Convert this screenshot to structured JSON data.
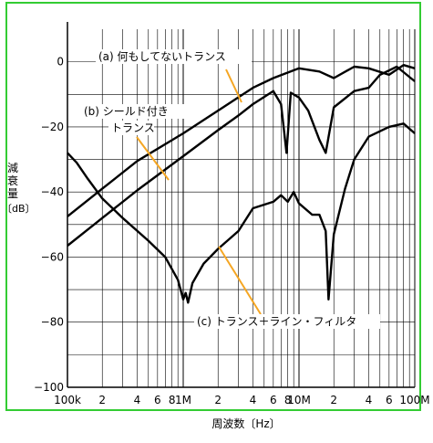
{
  "chart_data": {
    "type": "line",
    "title": "",
    "xlabel": "周波数〔Hz〕",
    "ylabel": "減衰量〔dB〕",
    "xscale": "log",
    "xlim": [
      100000,
      100000000
    ],
    "ylim": [
      -100,
      10
    ],
    "grid": true,
    "legend": "none",
    "x_ticks": [
      {
        "value": 100000,
        "label": "100k"
      },
      {
        "value": 200000,
        "label": "2"
      },
      {
        "value": 400000,
        "label": "4"
      },
      {
        "value": 600000,
        "label": "6"
      },
      {
        "value": 800000,
        "label": "8"
      },
      {
        "value": 1000000,
        "label": "1M"
      },
      {
        "value": 2000000,
        "label": "2"
      },
      {
        "value": 4000000,
        "label": "4"
      },
      {
        "value": 6000000,
        "label": "6"
      },
      {
        "value": 8000000,
        "label": "8"
      },
      {
        "value": 10000000,
        "label": "10M"
      },
      {
        "value": 20000000,
        "label": "2"
      },
      {
        "value": 40000000,
        "label": "4"
      },
      {
        "value": 60000000,
        "label": "6"
      },
      {
        "value": 100000000,
        "label": "100M"
      }
    ],
    "y_ticks": [
      {
        "value": 0,
        "label": "0"
      },
      {
        "value": -20,
        "label": "−20"
      },
      {
        "value": -40,
        "label": "−40"
      },
      {
        "value": -60,
        "label": "−60"
      },
      {
        "value": -80,
        "label": "−80"
      },
      {
        "value": -100,
        "label": "−100"
      }
    ],
    "annotations": [
      {
        "text": "(a)  何もしてないトランス",
        "series": "a"
      },
      {
        "text": "(b)  シールド付き",
        "series": "b"
      },
      {
        "text": "トランス",
        "series": "b"
      },
      {
        "text": "(c)  トランス＋ライン・フィルタ",
        "series": "c"
      }
    ],
    "series": [
      {
        "id": "a",
        "x": [
          100000,
          200000,
          400000,
          1000000,
          2000000,
          4000000,
          6000000,
          10000000,
          15000000,
          20000000,
          30000000,
          40000000,
          60000000,
          80000000,
          100000000
        ],
        "y": [
          -47.5,
          -39,
          -30.5,
          -22,
          -15,
          -8,
          -5,
          -2,
          -3,
          -5,
          -1.5,
          -2,
          -4,
          -1,
          -2
        ]
      },
      {
        "id": "b",
        "x": [
          100000,
          200000,
          400000,
          1000000,
          2000000,
          3000000,
          4000000,
          6000000,
          7000000,
          7800000,
          8500000,
          10000000,
          12000000,
          15000000,
          17000000,
          20000000,
          30000000,
          40000000,
          50000000,
          70000000,
          100000000
        ],
        "y": [
          -56.5,
          -48,
          -39.5,
          -29,
          -21,
          -16.5,
          -13,
          -9,
          -13,
          -28,
          -9.5,
          -11,
          -15,
          -24,
          -28,
          -14,
          -9,
          -8,
          -4,
          -1.5,
          -6
        ]
      },
      {
        "id": "c",
        "x": [
          100000,
          120000,
          150000,
          200000,
          300000,
          500000,
          700000,
          900000,
          1000000,
          1050000,
          1100000,
          1200000,
          1500000,
          2000000,
          3000000,
          4000000,
          6000000,
          7000000,
          8000000,
          9000000,
          10000000,
          13000000,
          15000000,
          17000000,
          18000000,
          20000000,
          25000000,
          30000000,
          40000000,
          60000000,
          80000000,
          100000000
        ],
        "y": [
          -28,
          -31,
          -36,
          -42,
          -48,
          -55,
          -60,
          -67,
          -73,
          -71,
          -74,
          -68,
          -62,
          -57.5,
          -52,
          -45,
          -43,
          -41,
          -43,
          -40,
          -43.5,
          -47,
          -47,
          -52,
          -73,
          -53,
          -39,
          -30,
          -23,
          -20,
          -19,
          -22
        ]
      }
    ]
  }
}
